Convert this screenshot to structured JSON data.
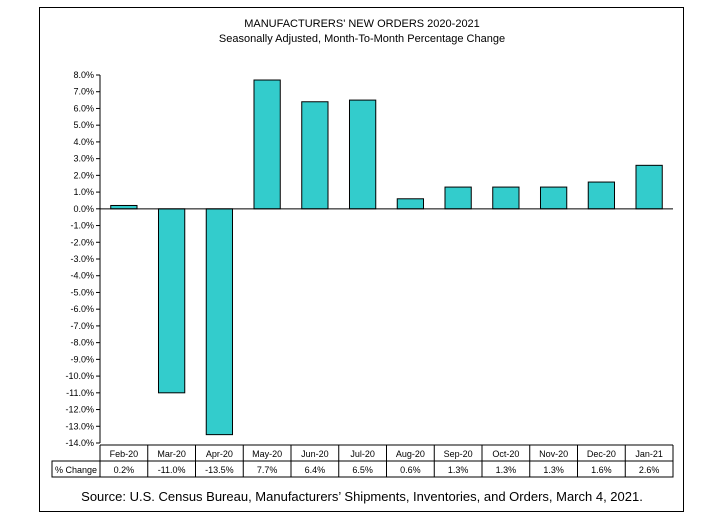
{
  "chart_data": {
    "type": "bar",
    "title": "MANUFACTURERS' NEW ORDERS 2020-2021",
    "subtitle": "Seasonally Adjusted,  Month-To-Month Percentage Change",
    "categories": [
      "Feb-20",
      "Mar-20",
      "Apr-20",
      "May-20",
      "Jun-20",
      "Jul-20",
      "Aug-20",
      "Sep-20",
      "Oct-20",
      "Nov-20",
      "Dec-20",
      "Jan-21"
    ],
    "values": [
      0.2,
      -11.0,
      -13.5,
      7.7,
      6.4,
      6.5,
      0.6,
      1.3,
      1.3,
      1.3,
      1.6,
      2.6
    ],
    "ylim": [
      -14,
      8
    ],
    "ytick_step": 1,
    "ytick_labels": [
      "8.0%",
      "7.0%",
      "6.0%",
      "5.0%",
      "4.0%",
      "3.0%",
      "2.0%",
      "1.0%",
      "0.0%",
      "-1.0%",
      "-2.0%",
      "-3.0%",
      "-4.0%",
      "-5.0%",
      "-6.0%",
      "-7.0%",
      "-8.0%",
      "-9.0%",
      "-10.0%",
      "-11.0%",
      "-12.0%",
      "-13.0%",
      "-14.0%"
    ],
    "table_row_label": "% Change",
    "table_values": [
      "0.2%",
      "-11.0%",
      "-13.5%",
      "7.7%",
      "6.4%",
      "6.5%",
      "0.6%",
      "1.3%",
      "1.3%",
      "1.3%",
      "1.6%",
      "2.6%"
    ],
    "bar_color": "#33CCCC",
    "grid": false,
    "source": "Source: U.S. Census Bureau, Manufacturers’ Shipments, Inventories, and Orders, March 4, 2021."
  }
}
